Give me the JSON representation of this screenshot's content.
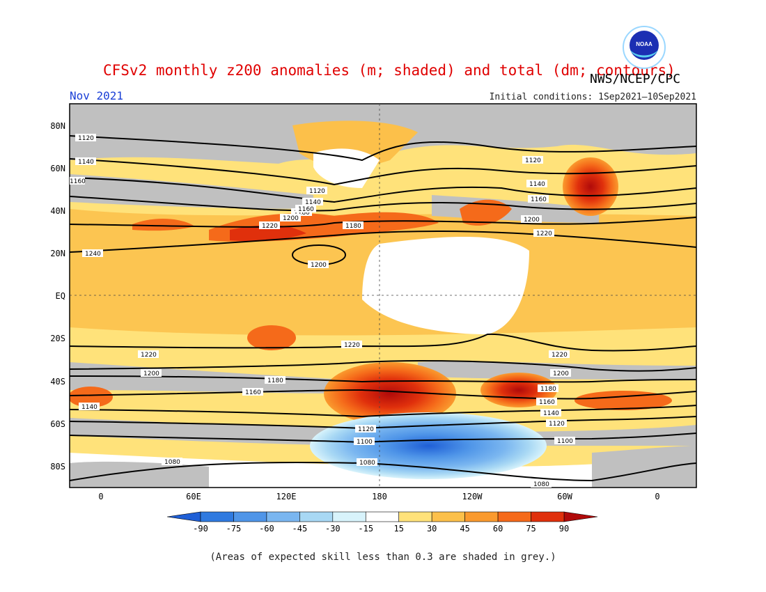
{
  "header": {
    "title": "CFSv2 monthly z200 anomalies (m; shaded) and total (dm; contours)",
    "agency": "NWS/NCEP/CPC",
    "month": "Nov 2021",
    "initial_conditions": "Initial conditions: 1Sep2021–10Sep2021",
    "logo_text": "NOAA"
  },
  "map": {
    "lat_labels": [
      "80N",
      "60N",
      "40N",
      "20N",
      "EQ",
      "20S",
      "40S",
      "60S",
      "80S"
    ],
    "lon_labels": [
      "0",
      "60E",
      "120E",
      "180",
      "120W",
      "60W",
      "0"
    ],
    "contour_labels": [
      "1120",
      "1140",
      "1160",
      "1180",
      "1200",
      "1220",
      "1240",
      "1120",
      "1140",
      "1160",
      "1180",
      "1200",
      "1220",
      "1220",
      "1200",
      "1180",
      "1160",
      "1140",
      "1120",
      "1100",
      "1080",
      "1080",
      "1220",
      "1200",
      "1180",
      "1160",
      "1140",
      "1120",
      "1100",
      "1080",
      "1220",
      "1200",
      "1140",
      "1220",
      "1120",
      "1140",
      "1160"
    ],
    "colors": {
      "grey_low_skill": "#c0c0c0",
      "neg_90": "#1f5fd6",
      "neg_75": "#2f7ae0",
      "neg_60": "#4f95e8",
      "neg_45": "#7ab6f0",
      "neg_30": "#a8d8f4",
      "neg_15": "#d8f3fb",
      "neutral": "#ffffff",
      "pos_15": "#ffe27a",
      "pos_30": "#fcc04a",
      "pos_45": "#fa9a2e",
      "pos_60": "#f56a1a",
      "pos_75": "#e0300c",
      "pos_90": "#b00a0a"
    }
  },
  "colorbar": {
    "labels": [
      "-90",
      "-75",
      "-60",
      "-45",
      "-30",
      "-15",
      "15",
      "30",
      "45",
      "60",
      "75",
      "90"
    ],
    "colors": [
      "#1f5fd6",
      "#2f7ae0",
      "#4f95e8",
      "#7ab6f0",
      "#a8d8f4",
      "#d8f3fb",
      "#ffffff",
      "#ffe27a",
      "#fcc04a",
      "#fa9a2e",
      "#f56a1a",
      "#e0300c",
      "#b00a0a"
    ]
  },
  "footnote": "(Areas of expected skill less than 0.3 are shaded in grey.)"
}
